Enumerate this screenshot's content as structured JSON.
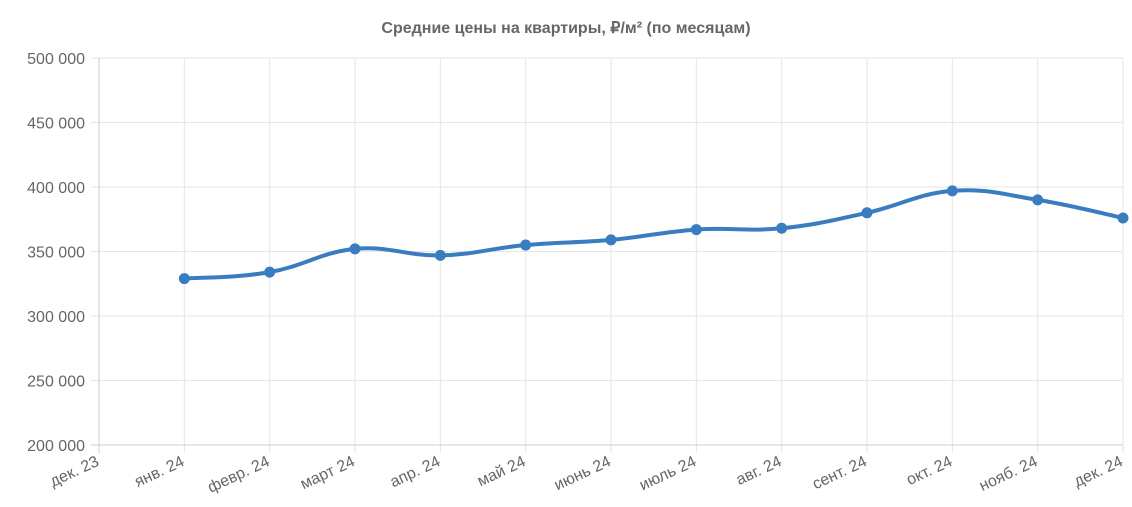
{
  "chart_data": {
    "type": "line",
    "title": "Средние цены на квартиры, ₽/м² (по месяцам)",
    "xlabel": "",
    "ylabel": "",
    "x_ticks": [
      "дек. 23",
      "янв. 24",
      "февр. 24",
      "март 24",
      "апр. 24",
      "май 24",
      "июнь 24",
      "июль 24",
      "авг. 24",
      "сент. 24",
      "окт. 24",
      "нояб. 24",
      "дек. 24"
    ],
    "y_ticks": [
      "200 000",
      "250 000",
      "300 000",
      "350 000",
      "400 000",
      "450 000",
      "500 000"
    ],
    "ylim": [
      200000,
      500000
    ],
    "grid": true,
    "legend": "none",
    "series": [
      {
        "color": "#3a7cc0",
        "points": [
          {
            "x": "янв. 24",
            "y": 329000
          },
          {
            "x": "февр. 24",
            "y": 334000
          },
          {
            "x": "март 24",
            "y": 352000
          },
          {
            "x": "апр. 24",
            "y": 347000
          },
          {
            "x": "май 24",
            "y": 355000
          },
          {
            "x": "июнь 24",
            "y": 359000
          },
          {
            "x": "июль 24",
            "y": 367000
          },
          {
            "x": "авг. 24",
            "y": 368000
          },
          {
            "x": "сент. 24",
            "y": 380000
          },
          {
            "x": "окт. 24",
            "y": 397000
          },
          {
            "x": "нояб. 24",
            "y": 390000
          },
          {
            "x": "дек. 24",
            "y": 376000
          }
        ]
      }
    ]
  }
}
